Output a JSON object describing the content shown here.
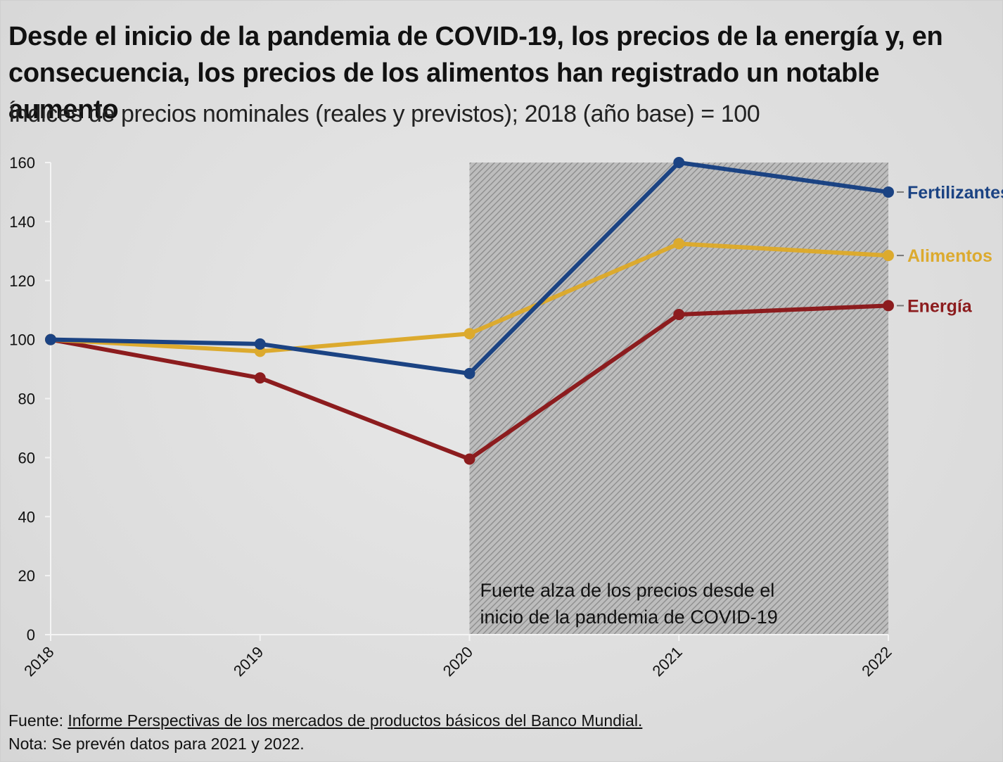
{
  "title": "Desde el inicio de la pandemia de COVID-19, los precios de la energía y, en consecuencia, los precios de los alimentos han registrado un notable aumento",
  "subtitle": "Índices de precios nominales (reales y previstos); 2018 (año base) = 100",
  "footer": {
    "source_prefix": "Fuente: ",
    "source_link": "Informe Perspectivas de los mercados de productos básicos del Banco Mundial.",
    "note": "Nota: Se prevén datos para 2021 y 2022."
  },
  "chart_data": {
    "type": "line",
    "x": [
      "2018",
      "2019",
      "2020",
      "2021",
      "2022"
    ],
    "ylim": [
      0,
      160
    ],
    "yticks": [
      0,
      20,
      40,
      60,
      80,
      100,
      120,
      140,
      160
    ],
    "grid": false,
    "series": [
      {
        "name": "Fertilizantes",
        "color": "#1b4383",
        "values": [
          100,
          98.5,
          88.5,
          160,
          150
        ]
      },
      {
        "name": "Alimentos",
        "color": "#dcaa2e",
        "values": [
          100,
          96,
          102,
          132.5,
          128.5
        ]
      },
      {
        "name": "Energía",
        "color": "#8c1c1e",
        "values": [
          100,
          87,
          59.5,
          108.5,
          111.5
        ]
      }
    ],
    "shaded_region": {
      "x_start": "2020",
      "x_end": "2022",
      "pattern": "diagonal-hatch",
      "label_line1": "Fuerte alza de los precios desde el",
      "label_line2": "inicio de la pandemia de COVID-19"
    }
  }
}
